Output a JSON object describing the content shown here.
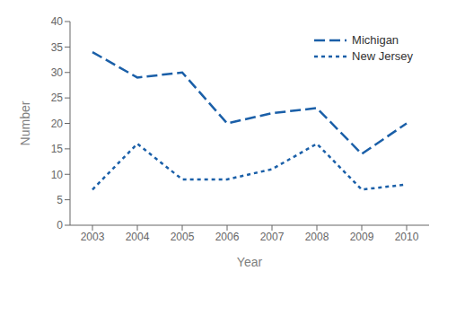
{
  "chart_data": {
    "type": "line",
    "x": [
      2003,
      2004,
      2005,
      2006,
      2007,
      2008,
      2009,
      2010
    ],
    "series": [
      {
        "name": "Michigan",
        "color": "#1a5fa8",
        "line_style": "dashed",
        "values": [
          34,
          29,
          30,
          20,
          22,
          23,
          14,
          20
        ]
      },
      {
        "name": "New Jersey",
        "color": "#1a5fa8",
        "line_style": "dotted",
        "values": [
          7,
          16,
          9,
          9,
          11,
          16,
          7,
          8
        ]
      }
    ],
    "xlabel": "Year",
    "ylabel": "Number",
    "xlim": [
      2002.5,
      2010.5
    ],
    "xticks": [
      2003,
      2004,
      2005,
      2006,
      2007,
      2008,
      2009,
      2010
    ],
    "ylim": [
      0,
      40
    ],
    "yticks": [
      0,
      5,
      10,
      15,
      20,
      25,
      30,
      35,
      40
    ],
    "grid": false,
    "legend": "upper right"
  }
}
